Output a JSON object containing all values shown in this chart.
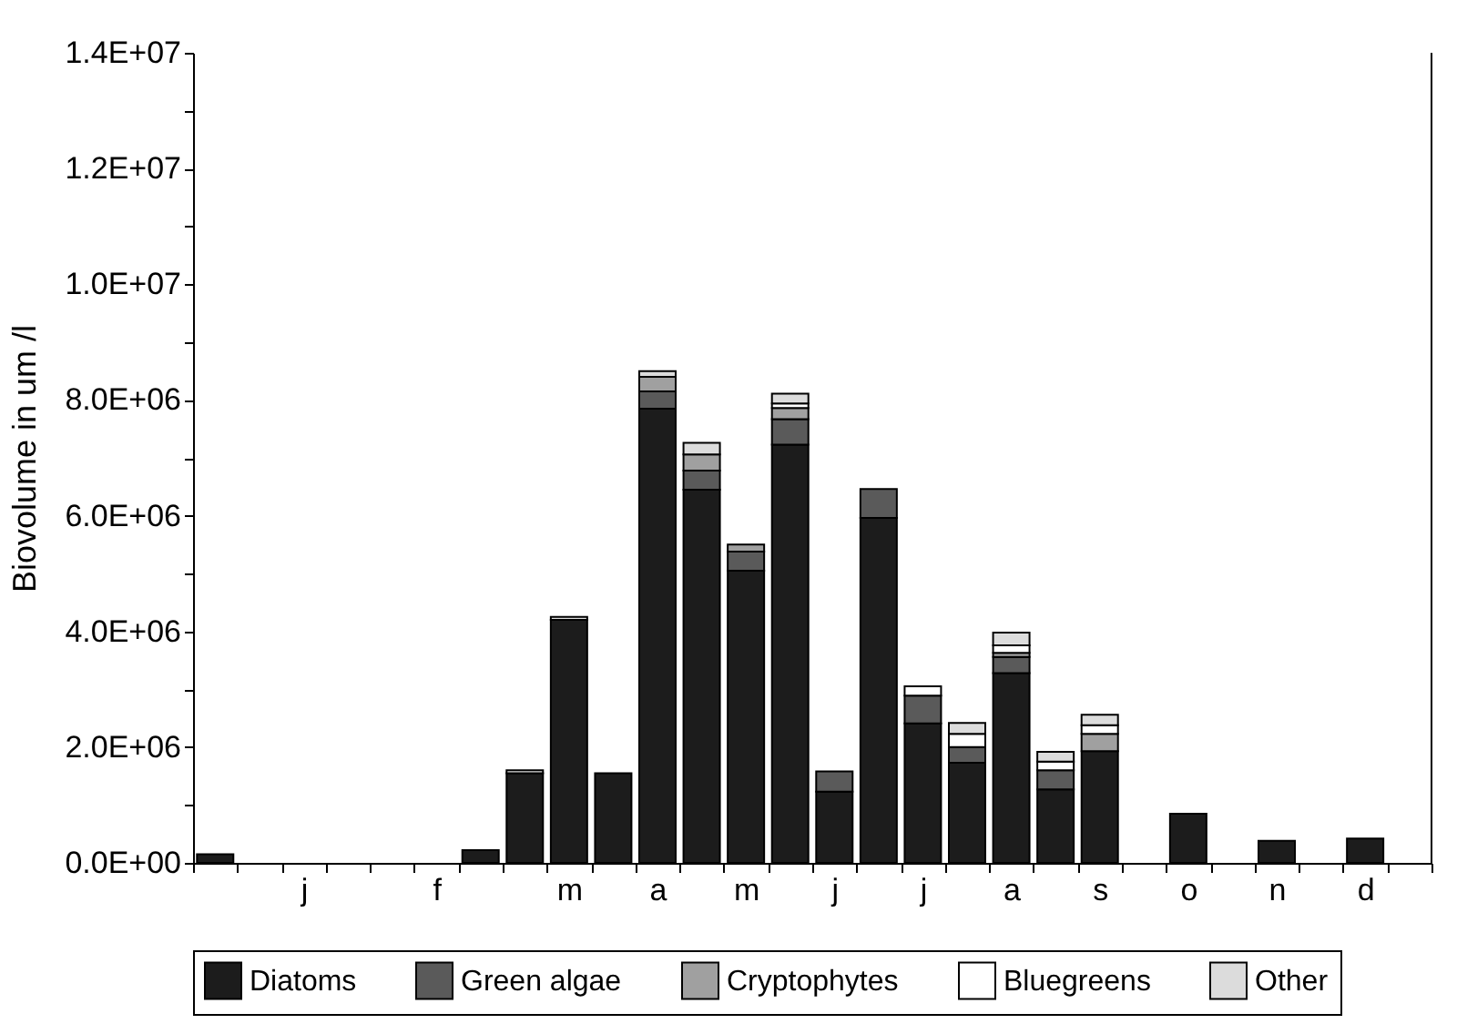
{
  "chart_data": {
    "type": "bar",
    "stacked": true,
    "ylabel": "Biovolume in um /l",
    "categories": [
      null,
      null,
      "j",
      null,
      null,
      "f",
      null,
      null,
      "m",
      null,
      "a",
      null,
      "m",
      null,
      "j",
      null,
      "j",
      null,
      "a",
      null,
      "s",
      null,
      "o",
      null,
      "n",
      null,
      "d",
      null
    ],
    "series": [
      {
        "name": "Diatoms",
        "color": "#1c1c1c",
        "values": [
          150000,
          null,
          null,
          null,
          null,
          null,
          220000,
          1550000,
          4200000,
          1550000,
          7850000,
          6450000,
          5050000,
          7230000,
          1230000,
          5960000,
          2410000,
          1730000,
          3280000,
          1270000,
          1930000,
          null,
          850000,
          null,
          380000,
          null,
          420000,
          null
        ]
      },
      {
        "name": "Green algae",
        "color": "#5a5a5a",
        "values": [
          null,
          null,
          null,
          null,
          null,
          null,
          null,
          null,
          null,
          null,
          300000,
          330000,
          330000,
          440000,
          350000,
          500000,
          480000,
          270000,
          280000,
          330000,
          null,
          null,
          null,
          null,
          null,
          null,
          null,
          null
        ]
      },
      {
        "name": "Cryptophytes",
        "color": "#a0a0a0",
        "values": [
          null,
          null,
          null,
          null,
          null,
          null,
          null,
          null,
          null,
          null,
          250000,
          280000,
          120000,
          190000,
          null,
          null,
          null,
          null,
          70000,
          null,
          300000,
          null,
          null,
          null,
          null,
          null,
          null,
          null
        ]
      },
      {
        "name": "Bluegreens",
        "color": "#ffffff",
        "values": [
          null,
          null,
          null,
          null,
          null,
          null,
          null,
          null,
          null,
          null,
          null,
          null,
          null,
          80000,
          null,
          null,
          160000,
          230000,
          130000,
          150000,
          150000,
          null,
          null,
          null,
          null,
          null,
          null,
          null
        ]
      },
      {
        "name": "Other",
        "color": "#dcdcdc",
        "values": [
          null,
          null,
          null,
          null,
          null,
          null,
          null,
          50000,
          50000,
          null,
          100000,
          200000,
          null,
          170000,
          null,
          null,
          null,
          190000,
          220000,
          170000,
          180000,
          null,
          null,
          null,
          null,
          null,
          null,
          null
        ]
      }
    ],
    "ylim": [
      0,
      14000000
    ],
    "yticks": [
      {
        "value": 0,
        "label": "0.0E+00"
      },
      {
        "value": 1000000,
        "label": null
      },
      {
        "value": 2000000,
        "label": "2.0E+06"
      },
      {
        "value": 3000000,
        "label": null
      },
      {
        "value": 4000000,
        "label": "4.0E+06"
      },
      {
        "value": 5000000,
        "label": null
      },
      {
        "value": 6000000,
        "label": "6.0E+06"
      },
      {
        "value": 7000000,
        "label": null
      },
      {
        "value": 8000000,
        "label": "8.0E+06"
      },
      {
        "value": 9000000,
        "label": null
      },
      {
        "value": 10000000,
        "label": "1.0E+07"
      },
      {
        "value": 11000000,
        "label": null
      },
      {
        "value": 12000000,
        "label": "1.2E+07"
      },
      {
        "value": 13000000,
        "label": null
      },
      {
        "value": 14000000,
        "label": "1.4E+07"
      }
    ],
    "grid": false,
    "legend": "bottom"
  }
}
